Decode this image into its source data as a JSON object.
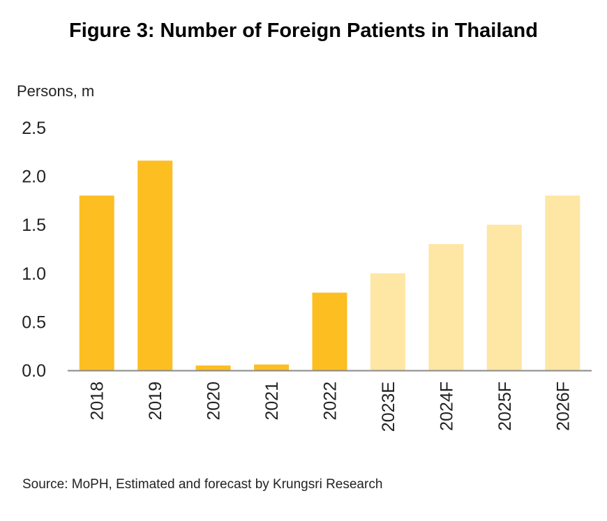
{
  "chart_data": {
    "type": "bar",
    "title": "Figure 3: Number of Foreign Patients in Thailand",
    "ylabel": "Persons, m",
    "xlabel": "",
    "categories": [
      "2018",
      "2019",
      "2020",
      "2021",
      "2022",
      "2023E",
      "2024F",
      "2025F",
      "2026F"
    ],
    "values": [
      1.8,
      2.16,
      0.05,
      0.06,
      0.8,
      1.0,
      1.3,
      1.5,
      1.8
    ],
    "kinds": [
      "actual",
      "actual",
      "actual",
      "actual",
      "actual",
      "forecast",
      "forecast",
      "forecast",
      "forecast"
    ],
    "yticks": [
      "0.0",
      "0.5",
      "1.0",
      "1.5",
      "2.0",
      "2.5"
    ],
    "ylim": [
      0,
      2.5
    ],
    "grid": false,
    "legend": "none",
    "colors": {
      "actual": "#FDBE22",
      "forecast": "#FEE6A4",
      "axis": "#8a8a8a"
    }
  },
  "source": "Source: MoPH,  Estimated and forecast by Krungsri Research"
}
